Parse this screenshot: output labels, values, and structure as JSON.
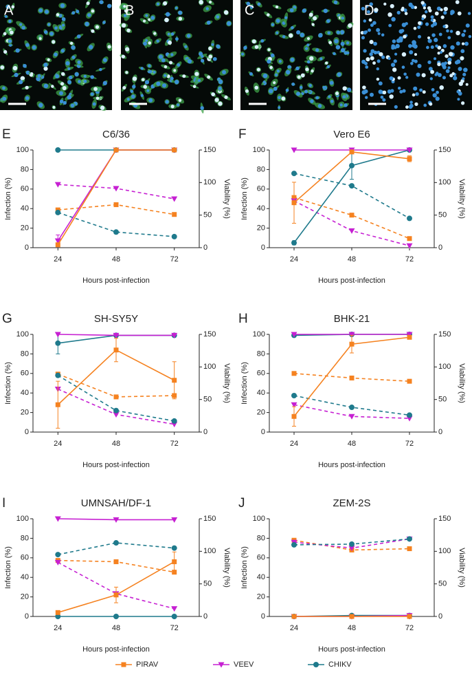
{
  "images": [
    {
      "label": "A"
    },
    {
      "label": "B"
    },
    {
      "label": "C"
    },
    {
      "label": "D"
    }
  ],
  "legend": [
    {
      "name": "PIRAV",
      "color": "#f58220",
      "marker": "square"
    },
    {
      "name": "VEEV",
      "color": "#c620d2",
      "marker": "triangle"
    },
    {
      "name": "CHIKV",
      "color": "#1f7a8c",
      "marker": "circle"
    }
  ],
  "chart_data": [
    {
      "type": "line",
      "panel": "E",
      "title": "C6/36",
      "ylabel": "Infection (%)",
      "y2label": "Viability (%)",
      "xlabel": "Hours post-infection",
      "categories": [
        "24",
        "48",
        "72"
      ],
      "ylim": [
        0,
        100
      ],
      "yticks": [
        0,
        20,
        40,
        60,
        80,
        100
      ],
      "y2lim": [
        0,
        150
      ],
      "y2ticks": [
        0,
        50,
        100,
        150
      ],
      "series": [
        {
          "name": "PIRAV",
          "color": "#f58220",
          "marker": "square",
          "dash": true,
          "axis": "y2",
          "values": [
            58,
            66,
            51
          ]
        },
        {
          "name": "VEEV",
          "color": "#c620d2",
          "marker": "triangle",
          "dash": true,
          "axis": "y2",
          "values": [
            97,
            91,
            75
          ]
        },
        {
          "name": "CHIKV",
          "color": "#1f7a8c",
          "marker": "circle",
          "dash": true,
          "axis": "y2",
          "values": [
            54,
            24,
            17
          ]
        },
        {
          "name": "CHIKV",
          "color": "#1f7a8c",
          "marker": "circle",
          "dash": false,
          "axis": "y",
          "values": [
            100,
            100,
            100
          ]
        },
        {
          "name": "VEEV",
          "color": "#c620d2",
          "marker": "triangle",
          "dash": false,
          "axis": "y",
          "values": [
            7,
            100,
            100
          ],
          "errors": [
            6,
            null,
            null
          ]
        },
        {
          "name": "PIRAV",
          "color": "#f58220",
          "marker": "square",
          "dash": false,
          "axis": "y",
          "values": [
            3,
            100,
            100
          ]
        }
      ]
    },
    {
      "type": "line",
      "panel": "F",
      "title": "Vero E6",
      "ylabel": "Infection (%)",
      "y2label": "Viability (%)",
      "xlabel": "Hours post-infection",
      "categories": [
        "24",
        "48",
        "72"
      ],
      "ylim": [
        0,
        100
      ],
      "yticks": [
        0,
        20,
        40,
        60,
        80,
        100
      ],
      "y2lim": [
        0,
        150
      ],
      "y2ticks": [
        0,
        50,
        100,
        150
      ],
      "series": [
        {
          "name": "PIRAV",
          "color": "#f58220",
          "marker": "square",
          "dash": true,
          "axis": "y2",
          "values": [
            77,
            50,
            14
          ]
        },
        {
          "name": "VEEV",
          "color": "#c620d2",
          "marker": "triangle",
          "dash": true,
          "axis": "y2",
          "values": [
            72,
            26,
            3
          ]
        },
        {
          "name": "CHIKV",
          "color": "#1f7a8c",
          "marker": "circle",
          "dash": true,
          "axis": "y2",
          "values": [
            114,
            95,
            45
          ]
        },
        {
          "name": "CHIKV",
          "color": "#1f7a8c",
          "marker": "circle",
          "dash": false,
          "axis": "y",
          "values": [
            5,
            84,
            100
          ],
          "errors": [
            2,
            14,
            null
          ]
        },
        {
          "name": "VEEV",
          "color": "#c620d2",
          "marker": "triangle",
          "dash": false,
          "axis": "y",
          "values": [
            100,
            100,
            100
          ]
        },
        {
          "name": "PIRAV",
          "color": "#f58220",
          "marker": "square",
          "dash": false,
          "axis": "y",
          "values": [
            46,
            98,
            91
          ],
          "errors": [
            21,
            null,
            3
          ]
        }
      ]
    },
    {
      "type": "line",
      "panel": "G",
      "title": "SH-SY5Y",
      "ylabel": "Infection (%)",
      "y2label": "Viability (%)",
      "xlabel": "Hours post-infection",
      "categories": [
        "24",
        "48",
        "72"
      ],
      "ylim": [
        0,
        100
      ],
      "yticks": [
        0,
        20,
        40,
        60,
        80,
        100
      ],
      "y2lim": [
        0,
        150
      ],
      "y2ticks": [
        0,
        50,
        100,
        150
      ],
      "series": [
        {
          "name": "PIRAV",
          "color": "#f58220",
          "marker": "square",
          "dash": true,
          "axis": "y2",
          "values": [
            89,
            54,
            56
          ]
        },
        {
          "name": "VEEV",
          "color": "#c620d2",
          "marker": "triangle",
          "dash": true,
          "axis": "y2",
          "values": [
            66,
            27,
            12
          ]
        },
        {
          "name": "CHIKV",
          "color": "#1f7a8c",
          "marker": "circle",
          "dash": true,
          "axis": "y2",
          "values": [
            87,
            33,
            17
          ]
        },
        {
          "name": "CHIKV",
          "color": "#1f7a8c",
          "marker": "circle",
          "dash": false,
          "axis": "y",
          "values": [
            91,
            99,
            99
          ],
          "errors": [
            11,
            null,
            null
          ]
        },
        {
          "name": "VEEV",
          "color": "#c620d2",
          "marker": "triangle",
          "dash": false,
          "axis": "y",
          "values": [
            100,
            99,
            99
          ]
        },
        {
          "name": "PIRAV",
          "color": "#f58220",
          "marker": "square",
          "dash": false,
          "axis": "y",
          "values": [
            28,
            84,
            53
          ],
          "errors": [
            24,
            12,
            19
          ]
        }
      ]
    },
    {
      "type": "line",
      "panel": "H",
      "title": "BHK-21",
      "ylabel": "Infection (%)",
      "y2label": "Viability (%)",
      "xlabel": "Hours post-infection",
      "categories": [
        "24",
        "48",
        "72"
      ],
      "ylim": [
        0,
        100
      ],
      "yticks": [
        0,
        20,
        40,
        60,
        80,
        100
      ],
      "y2lim": [
        0,
        150
      ],
      "y2ticks": [
        0,
        50,
        100,
        150
      ],
      "series": [
        {
          "name": "PIRAV",
          "color": "#f58220",
          "marker": "square",
          "dash": true,
          "axis": "y2",
          "values": [
            90,
            83,
            78
          ]
        },
        {
          "name": "VEEV",
          "color": "#c620d2",
          "marker": "triangle",
          "dash": true,
          "axis": "y2",
          "values": [
            42,
            24,
            21
          ]
        },
        {
          "name": "CHIKV",
          "color": "#1f7a8c",
          "marker": "circle",
          "dash": true,
          "axis": "y2",
          "values": [
            56,
            38,
            26
          ]
        },
        {
          "name": "CHIKV",
          "color": "#1f7a8c",
          "marker": "circle",
          "dash": false,
          "axis": "y",
          "values": [
            99,
            100,
            100
          ]
        },
        {
          "name": "VEEV",
          "color": "#c620d2",
          "marker": "triangle",
          "dash": false,
          "axis": "y",
          "values": [
            100,
            100,
            100
          ]
        },
        {
          "name": "PIRAV",
          "color": "#f58220",
          "marker": "square",
          "dash": false,
          "axis": "y",
          "values": [
            16,
            90,
            97
          ],
          "errors": [
            10,
            9,
            1
          ]
        }
      ]
    },
    {
      "type": "line",
      "panel": "I",
      "title": "UMNSAH/DF-1",
      "ylabel": "Infection (%)",
      "y2label": "Viability (%)",
      "xlabel": "Hours post-infection",
      "categories": [
        "24",
        "48",
        "72"
      ],
      "ylim": [
        0,
        100
      ],
      "yticks": [
        0,
        20,
        40,
        60,
        80,
        100
      ],
      "y2lim": [
        0,
        150
      ],
      "y2ticks": [
        0,
        50,
        100,
        150
      ],
      "series": [
        {
          "name": "PIRAV",
          "color": "#f58220",
          "marker": "square",
          "dash": true,
          "axis": "y2",
          "values": [
            86,
            84,
            68
          ]
        },
        {
          "name": "VEEV",
          "color": "#c620d2",
          "marker": "triangle",
          "dash": true,
          "axis": "y2",
          "values": [
            83,
            35,
            12
          ]
        },
        {
          "name": "CHIKV",
          "color": "#1f7a8c",
          "marker": "circle",
          "dash": true,
          "axis": "y2",
          "values": [
            95,
            113,
            105
          ]
        },
        {
          "name": "CHIKV",
          "color": "#1f7a8c",
          "marker": "circle",
          "dash": false,
          "axis": "y",
          "values": [
            0,
            0,
            0
          ]
        },
        {
          "name": "VEEV",
          "color": "#c620d2",
          "marker": "triangle",
          "dash": false,
          "axis": "y",
          "values": [
            100,
            99,
            99
          ]
        },
        {
          "name": "PIRAV",
          "color": "#f58220",
          "marker": "square",
          "dash": false,
          "axis": "y",
          "values": [
            4,
            22,
            56
          ],
          "errors": [
            null,
            8,
            10
          ]
        }
      ]
    },
    {
      "type": "line",
      "panel": "J",
      "title": "ZEM-2S",
      "ylabel": "Infection (%)",
      "y2label": "Viability (%)",
      "xlabel": "Hours post-infection",
      "categories": [
        "24",
        "48",
        "72"
      ],
      "ylim": [
        0,
        100
      ],
      "yticks": [
        0,
        20,
        40,
        60,
        80,
        100
      ],
      "y2lim": [
        0,
        150
      ],
      "y2ticks": [
        0,
        50,
        100,
        150
      ],
      "series": [
        {
          "name": "PIRAV",
          "color": "#f58220",
          "marker": "square",
          "dash": true,
          "axis": "y2",
          "values": [
            117,
            102,
            104
          ]
        },
        {
          "name": "VEEV",
          "color": "#c620d2",
          "marker": "triangle",
          "dash": true,
          "axis": "y2",
          "values": [
            114,
            105,
            119
          ]
        },
        {
          "name": "CHIKV",
          "color": "#1f7a8c",
          "marker": "circle",
          "dash": true,
          "axis": "y2",
          "values": [
            110,
            111,
            119
          ]
        },
        {
          "name": "CHIKV",
          "color": "#1f7a8c",
          "marker": "circle",
          "dash": false,
          "axis": "y",
          "values": [
            0,
            1,
            1
          ]
        },
        {
          "name": "VEEV",
          "color": "#c620d2",
          "marker": "triangle",
          "dash": false,
          "axis": "y",
          "values": [
            0,
            0,
            1
          ]
        },
        {
          "name": "PIRAV",
          "color": "#f58220",
          "marker": "square",
          "dash": false,
          "axis": "y",
          "values": [
            0,
            0,
            0
          ]
        }
      ]
    }
  ]
}
